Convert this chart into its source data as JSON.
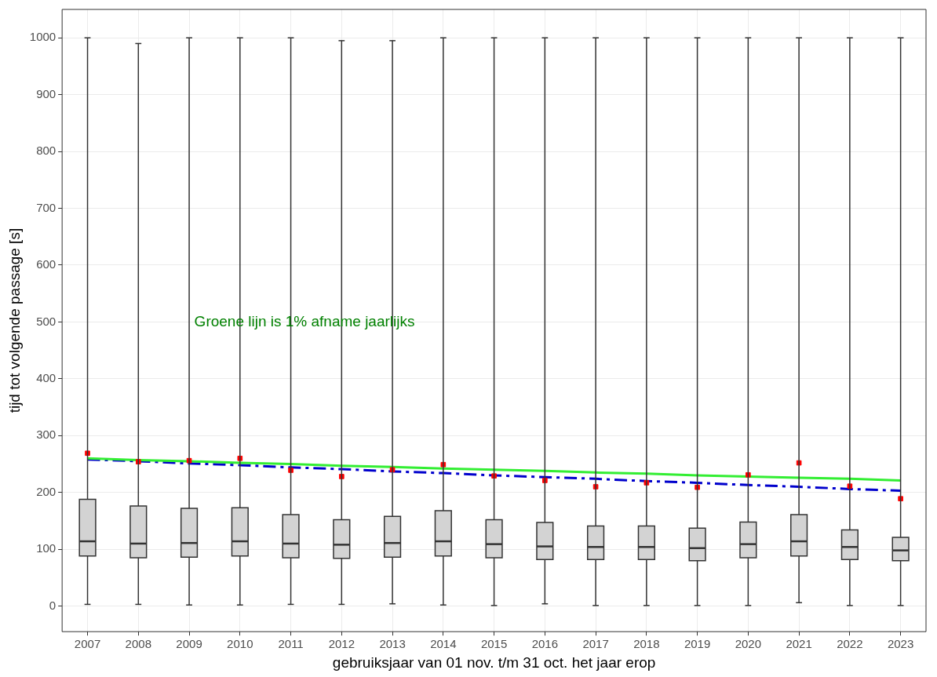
{
  "chart_data": {
    "type": "box",
    "xlabel": "gebruiksjaar van 01 nov. t/m 31 oct. het jaar erop",
    "ylabel": "tijd tot volgende passage [s]",
    "annotations": [
      "Groene lijn is 1% afname jaarlijks"
    ],
    "categories": [
      "2007",
      "2008",
      "2009",
      "2010",
      "2011",
      "2012",
      "2013",
      "2014",
      "2015",
      "2016",
      "2017",
      "2018",
      "2019",
      "2020",
      "2021",
      "2022",
      "2023"
    ],
    "ylim": [
      -45,
      1050
    ],
    "yticks": [
      0,
      100,
      200,
      300,
      400,
      500,
      600,
      700,
      800,
      900,
      1000
    ],
    "grid": true,
    "color": "#d3d3d3",
    "boxes": [
      {
        "low": 3,
        "q1": 88,
        "median": 114,
        "q3": 188,
        "high": 1000,
        "mean": 269
      },
      {
        "low": 3,
        "q1": 85,
        "median": 110,
        "q3": 176,
        "high": 990,
        "mean": 254
      },
      {
        "low": 2,
        "q1": 86,
        "median": 111,
        "q3": 172,
        "high": 1000,
        "mean": 256
      },
      {
        "low": 2,
        "q1": 88,
        "median": 114,
        "q3": 173,
        "high": 1000,
        "mean": 260
      },
      {
        "low": 3,
        "q1": 85,
        "median": 110,
        "q3": 161,
        "high": 1000,
        "mean": 239
      },
      {
        "low": 3,
        "q1": 84,
        "median": 108,
        "q3": 152,
        "high": 995,
        "mean": 228
      },
      {
        "low": 4,
        "q1": 86,
        "median": 111,
        "q3": 158,
        "high": 995,
        "mean": 240
      },
      {
        "low": 2,
        "q1": 88,
        "median": 114,
        "q3": 168,
        "high": 1000,
        "mean": 249
      },
      {
        "low": 1,
        "q1": 85,
        "median": 109,
        "q3": 152,
        "high": 1000,
        "mean": 229
      },
      {
        "low": 4,
        "q1": 82,
        "median": 105,
        "q3": 147,
        "high": 1000,
        "mean": 221
      },
      {
        "low": 1,
        "q1": 82,
        "median": 104,
        "q3": 141,
        "high": 1000,
        "mean": 210
      },
      {
        "low": 1,
        "q1": 82,
        "median": 104,
        "q3": 141,
        "high": 1000,
        "mean": 217
      },
      {
        "low": 1,
        "q1": 80,
        "median": 102,
        "q3": 137,
        "high": 1000,
        "mean": 209
      },
      {
        "low": 1,
        "q1": 85,
        "median": 109,
        "q3": 148,
        "high": 1000,
        "mean": 231
      },
      {
        "low": 6,
        "q1": 88,
        "median": 114,
        "q3": 161,
        "high": 1000,
        "mean": 252
      },
      {
        "low": 1,
        "q1": 82,
        "median": 104,
        "q3": 134,
        "high": 1000,
        "mean": 211
      },
      {
        "low": 1,
        "q1": 80,
        "median": 98,
        "q3": 121,
        "high": 1000,
        "mean": 189
      }
    ],
    "series": [
      {
        "type": "line",
        "color": "#33ee33",
        "values": [
          260,
          257,
          255,
          252,
          250,
          247,
          245,
          242,
          240,
          238,
          235,
          233,
          230,
          228,
          226,
          224,
          221
        ]
      },
      {
        "type": "line",
        "color": "#0000cc",
        "line_style": "dashed",
        "values": [
          258,
          255,
          251,
          248,
          244,
          241,
          237,
          234,
          230,
          227,
          224,
          220,
          217,
          213,
          210,
          206,
          203
        ]
      }
    ]
  }
}
